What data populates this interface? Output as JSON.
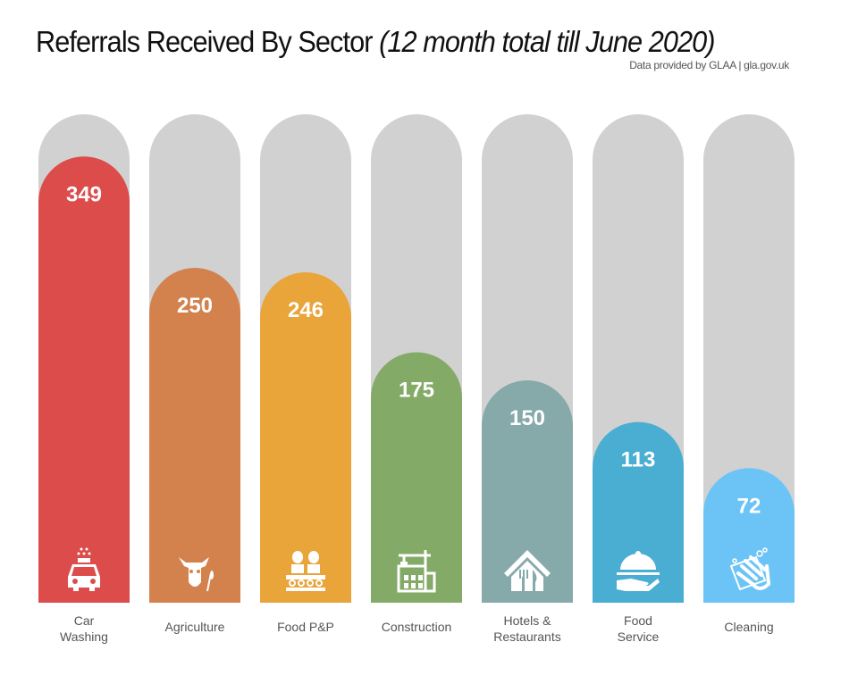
{
  "chart_data": {
    "type": "bar",
    "title": "Referrals Received By Sector",
    "subtitle": "(12 month total till June 2020)",
    "source": "Data provided by GLAA | gla.gov.uk",
    "categories": [
      "Car Washing",
      "Agriculture",
      "Food P&P",
      "Construction",
      "Hotels & Restaurants",
      "Food Service",
      "Cleaning"
    ],
    "category_lines": [
      [
        "Car",
        "Washing"
      ],
      [
        "Agriculture"
      ],
      [
        "Food P&P"
      ],
      [
        "Construction"
      ],
      [
        "Hotels &",
        "Restaurants"
      ],
      [
        "Food",
        "Service"
      ],
      [
        "Cleaning"
      ]
    ],
    "values": [
      349,
      250,
      246,
      175,
      150,
      113,
      72
    ],
    "colors": [
      "#dc4c4b",
      "#d4824d",
      "#e9a43a",
      "#83aa67",
      "#86a9aa",
      "#4aaed3",
      "#6cc4f6"
    ],
    "track_color": "#d1d1d1",
    "icons": [
      "car-wash-icon",
      "cow-wheat-icon",
      "food-workers-icon",
      "crane-building-icon",
      "house-cutlery-icon",
      "serving-cloche-icon",
      "washing-hand-icon"
    ]
  }
}
